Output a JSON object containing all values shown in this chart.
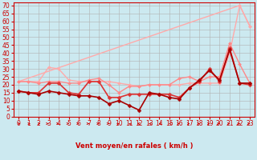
{
  "background_color": "#cce9f0",
  "grid_color": "#b0b0b0",
  "xlabel": "Vent moyen/en rafales ( km/h )",
  "x_ticks": [
    0,
    1,
    2,
    3,
    4,
    5,
    6,
    7,
    8,
    9,
    10,
    11,
    12,
    13,
    14,
    15,
    16,
    17,
    18,
    19,
    20,
    21,
    22,
    23
  ],
  "ylim": [
    0,
    72
  ],
  "y_ticks": [
    0,
    5,
    10,
    15,
    20,
    25,
    30,
    35,
    40,
    45,
    50,
    55,
    60,
    65,
    70
  ],
  "series": [
    {
      "color": "#ffaaaa",
      "lw": 1.0,
      "marker": "D",
      "markersize": 2.0,
      "data_x": [
        0,
        1,
        2,
        3,
        4,
        5,
        6,
        7,
        8,
        9,
        10,
        11,
        12,
        13,
        14,
        15,
        16,
        17,
        18,
        19,
        20,
        21,
        22,
        23
      ],
      "data_y": [
        22,
        22,
        22,
        31,
        30,
        23,
        22,
        22,
        22,
        22,
        21,
        20,
        19,
        20,
        20,
        20,
        20,
        21,
        21,
        21,
        21,
        40,
        70,
        57
      ]
    },
    {
      "color": "#ffaaaa",
      "lw": 1.0,
      "marker": "D",
      "markersize": 2.0,
      "data_x": [
        0,
        22,
        23
      ],
      "data_y": [
        22,
        70,
        57
      ]
    },
    {
      "color": "#ff8888",
      "lw": 1.0,
      "marker": "D",
      "markersize": 2.0,
      "data_x": [
        0,
        1,
        2,
        3,
        4,
        5,
        6,
        7,
        8,
        9,
        10,
        11,
        12,
        13,
        14,
        15,
        16,
        17,
        18,
        19,
        20,
        21,
        22,
        23
      ],
      "data_y": [
        22,
        22,
        21,
        22,
        22,
        21,
        21,
        23,
        24,
        20,
        15,
        19,
        19,
        20,
        20,
        20,
        24,
        25,
        22,
        25,
        25,
        46,
        33,
        21
      ]
    },
    {
      "color": "#dd3333",
      "lw": 1.2,
      "marker": "D",
      "markersize": 2.5,
      "data_x": [
        0,
        1,
        2,
        3,
        4,
        5,
        6,
        7,
        8,
        9,
        10,
        11,
        12,
        13,
        14,
        15,
        16,
        17,
        18,
        19,
        20,
        21,
        22,
        23
      ],
      "data_y": [
        16,
        15,
        15,
        21,
        21,
        15,
        14,
        22,
        22,
        12,
        12,
        14,
        14,
        14,
        14,
        14,
        12,
        18,
        22,
        30,
        22,
        43,
        21,
        20
      ]
    },
    {
      "color": "#aa0000",
      "lw": 1.2,
      "marker": "D",
      "markersize": 2.5,
      "data_x": [
        0,
        1,
        2,
        3,
        4,
        5,
        6,
        7,
        8,
        9,
        10,
        11,
        12,
        13,
        14,
        15,
        16,
        17,
        18,
        19,
        20,
        21,
        22,
        23
      ],
      "data_y": [
        16,
        15,
        14,
        16,
        15,
        14,
        13,
        13,
        12,
        8,
        10,
        7,
        4,
        15,
        14,
        12,
        11,
        18,
        23,
        29,
        23,
        42,
        21,
        21
      ]
    }
  ],
  "arrows": {
    "directions_deg": [
      45,
      45,
      45,
      30,
      15,
      10,
      10,
      10,
      10,
      10,
      80,
      100,
      135,
      160,
      170,
      170,
      10,
      10,
      10,
      10,
      10,
      10,
      10,
      10
    ],
    "color": "#cc0000"
  },
  "label_fontsize": 6,
  "tick_fontsize": 5.5
}
